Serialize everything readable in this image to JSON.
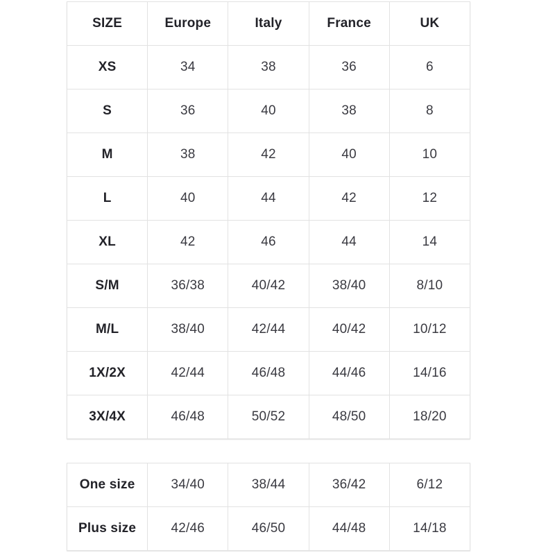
{
  "colors": {
    "background": "#ffffff",
    "border": "#e2e2e2",
    "label_text": "#222228",
    "value_text": "#3a3a41"
  },
  "chart_data": [
    {
      "type": "table",
      "columns": [
        "SIZE",
        "Europe",
        "Italy",
        "France",
        "UK"
      ],
      "rows": [
        [
          "XS",
          "34",
          "38",
          "36",
          "6"
        ],
        [
          "S",
          "36",
          "40",
          "38",
          "8"
        ],
        [
          "M",
          "38",
          "42",
          "40",
          "10"
        ],
        [
          "L",
          "40",
          "44",
          "42",
          "12"
        ],
        [
          "XL",
          "42",
          "46",
          "44",
          "14"
        ],
        [
          "S/M",
          "36/38",
          "40/42",
          "38/40",
          "8/10"
        ],
        [
          "M/L",
          "38/40",
          "42/44",
          "40/42",
          "10/12"
        ],
        [
          "1X/2X",
          "42/44",
          "46/48",
          "44/46",
          "14/16"
        ],
        [
          "3X/4X",
          "46/48",
          "50/52",
          "48/50",
          "18/20"
        ]
      ],
      "layout": {
        "grid": true,
        "header_row": true,
        "first_column_bold": true
      }
    },
    {
      "type": "table",
      "columns": [],
      "rows": [
        [
          "One size",
          "34/40",
          "38/44",
          "36/42",
          "6/12"
        ],
        [
          "Plus size",
          "42/46",
          "46/50",
          "44/48",
          "14/18"
        ]
      ],
      "layout": {
        "grid": true,
        "header_row": false,
        "first_column_bold": true
      }
    }
  ]
}
